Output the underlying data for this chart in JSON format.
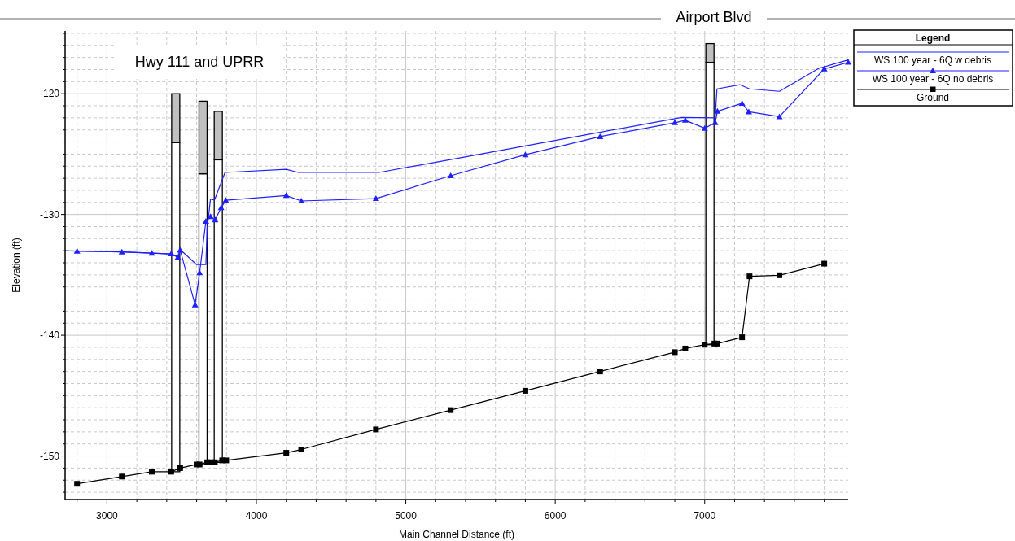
{
  "chart_data": {
    "type": "line",
    "title": "Airport Blvd",
    "xlabel": "Main Channel Distance (ft)",
    "ylabel": "Elevation (ft)",
    "legend_title": "Legend",
    "annotations": [
      "Hwy 111 and UPRR"
    ],
    "xlim": [
      2720,
      7960
    ],
    "ylim": [
      -153.6,
      -114.8
    ],
    "xticks": [
      {
        "value": 2800,
        "label": null
      },
      3000,
      {
        "value": 3200,
        "label": null
      },
      {
        "value": 3400,
        "label": null
      },
      {
        "value": 3600,
        "label": null
      },
      {
        "value": 3800,
        "label": null
      },
      4000,
      {
        "value": 4200,
        "label": null
      },
      {
        "value": 4400,
        "label": null
      },
      {
        "value": 4600,
        "label": null
      },
      {
        "value": 4800,
        "label": null
      },
      5000,
      {
        "value": 5200,
        "label": null
      },
      {
        "value": 5400,
        "label": null
      },
      {
        "value": 5600,
        "label": null
      },
      {
        "value": 5800,
        "label": null
      },
      6000,
      {
        "value": 6200,
        "label": null
      },
      {
        "value": 6400,
        "label": null
      },
      {
        "value": 6600,
        "label": null
      },
      {
        "value": 6800,
        "label": null
      },
      7000,
      {
        "value": 7200,
        "label": null
      },
      {
        "value": 7400,
        "label": null
      },
      {
        "value": 7600,
        "label": null
      },
      {
        "value": 7800,
        "label": null
      }
    ],
    "yticks": [
      {
        "value": -153,
        "label": null
      },
      {
        "value": -152,
        "label": null
      },
      {
        "value": -151,
        "label": null
      },
      -150,
      {
        "value": -149,
        "label": null
      },
      {
        "value": -148,
        "label": null
      },
      {
        "value": -147,
        "label": null
      },
      {
        "value": -146,
        "label": null
      },
      {
        "value": -145,
        "label": null
      },
      {
        "value": -144,
        "label": null
      },
      {
        "value": -143,
        "label": null
      },
      {
        "value": -142,
        "label": null
      },
      {
        "value": -141,
        "label": null
      },
      -140,
      {
        "value": -139,
        "label": null
      },
      {
        "value": -138,
        "label": null
      },
      {
        "value": -137,
        "label": null
      },
      {
        "value": -136,
        "label": null
      },
      {
        "value": -135,
        "label": null
      },
      {
        "value": -134,
        "label": null
      },
      {
        "value": -133,
        "label": null
      },
      {
        "value": -132,
        "label": null
      },
      {
        "value": -131,
        "label": null
      },
      -130,
      {
        "value": -129,
        "label": null
      },
      {
        "value": -128,
        "label": null
      },
      {
        "value": -127,
        "label": null
      },
      {
        "value": -126,
        "label": null
      },
      {
        "value": -125,
        "label": null
      },
      {
        "value": -124,
        "label": null
      },
      {
        "value": -123,
        "label": null
      },
      {
        "value": -122,
        "label": null
      },
      {
        "value": -121,
        "label": null
      },
      -120,
      {
        "value": -119,
        "label": null
      },
      {
        "value": -118,
        "label": null
      },
      {
        "value": -117,
        "label": null
      },
      {
        "value": -116,
        "label": null
      },
      {
        "value": -115,
        "label": null
      }
    ],
    "grid": true,
    "legend": "top right",
    "series": [
      {
        "type": "bar",
        "color": "#ffffff",
        "x": [
          3460,
          3643,
          3745,
          7035
        ],
        "base": [
          -151.3,
          -150.7,
          -150.52,
          -140.78
        ],
        "values": [
          27.26,
          24.07,
          25.05,
          23.38
        ]
      },
      {
        "type": "bar",
        "color": "#c0c0c0",
        "x": [
          3460,
          3643,
          3745,
          7035
        ],
        "base": [
          -124.04,
          -126.63,
          -125.47,
          -117.4
        ],
        "values": [
          4.04,
          6.01,
          4.01,
          1.55
        ]
      },
      {
        "name": "WS  100 year - 6Q w debris",
        "color": "#2020ff",
        "marker": "none",
        "x": [
          2720,
          2800,
          3100,
          3300,
          3430,
          3475,
          3490,
          3600,
          3662,
          3670,
          3693,
          3720,
          3790,
          4200,
          4280,
          4820,
          5300,
          6845,
          7070,
          7082,
          7237,
          7300,
          7500,
          7764,
          7960
        ],
        "values": [
          -133.0,
          -133.03,
          -133.1,
          -133.2,
          -133.26,
          -133.5,
          -132.9,
          -134.15,
          -134.15,
          -131.2,
          -128.72,
          -128.8,
          -126.52,
          -126.26,
          -126.52,
          -126.52,
          -125.45,
          -121.96,
          -122.0,
          -119.6,
          -119.26,
          -119.6,
          -119.8,
          -117.9,
          -117.2
        ]
      },
      {
        "name": "WS  100 year - 6Q no debris",
        "color": "#2020ff",
        "marker": "triangle",
        "x": [
          2800,
          3100,
          3300,
          3430,
          3475,
          3490,
          3590,
          3620,
          3662,
          3693,
          3724,
          3764,
          3795,
          4200,
          4300,
          4800,
          5300,
          5800,
          6300,
          6800,
          6870,
          7000,
          7070,
          7085,
          7250,
          7295,
          7500,
          7800,
          7960
        ],
        "values": [
          -133.03,
          -133.1,
          -133.2,
          -133.26,
          -133.55,
          -132.95,
          -137.48,
          -134.83,
          -130.56,
          -130.18,
          -130.45,
          -129.44,
          -128.82,
          -128.43,
          -128.88,
          -128.68,
          -126.79,
          -125.05,
          -123.55,
          -122.4,
          -122.2,
          -122.86,
          -122.4,
          -121.46,
          -120.79,
          -121.5,
          -121.9,
          -117.95,
          -117.4
        ]
      },
      {
        "name": "Ground",
        "color": "#000000",
        "marker": "square",
        "x": [
          2800,
          3100,
          3300,
          3430,
          3490,
          3600,
          3620,
          3671,
          3698,
          3722,
          3771,
          3798,
          4200,
          4300,
          4800,
          5300,
          5800,
          6300,
          6800,
          6870,
          7000,
          7065,
          7085,
          7250,
          7300,
          7500,
          7800
        ],
        "values": [
          -152.3,
          -151.7,
          -151.3,
          -151.3,
          -151.0,
          -150.7,
          -150.7,
          -150.52,
          -150.52,
          -150.52,
          -150.36,
          -150.36,
          -149.73,
          -149.46,
          -147.8,
          -146.2,
          -144.6,
          -143.0,
          -141.4,
          -141.1,
          -140.78,
          -140.69,
          -140.69,
          -140.17,
          -135.12,
          -135.03,
          -134.07
        ]
      }
    ]
  }
}
